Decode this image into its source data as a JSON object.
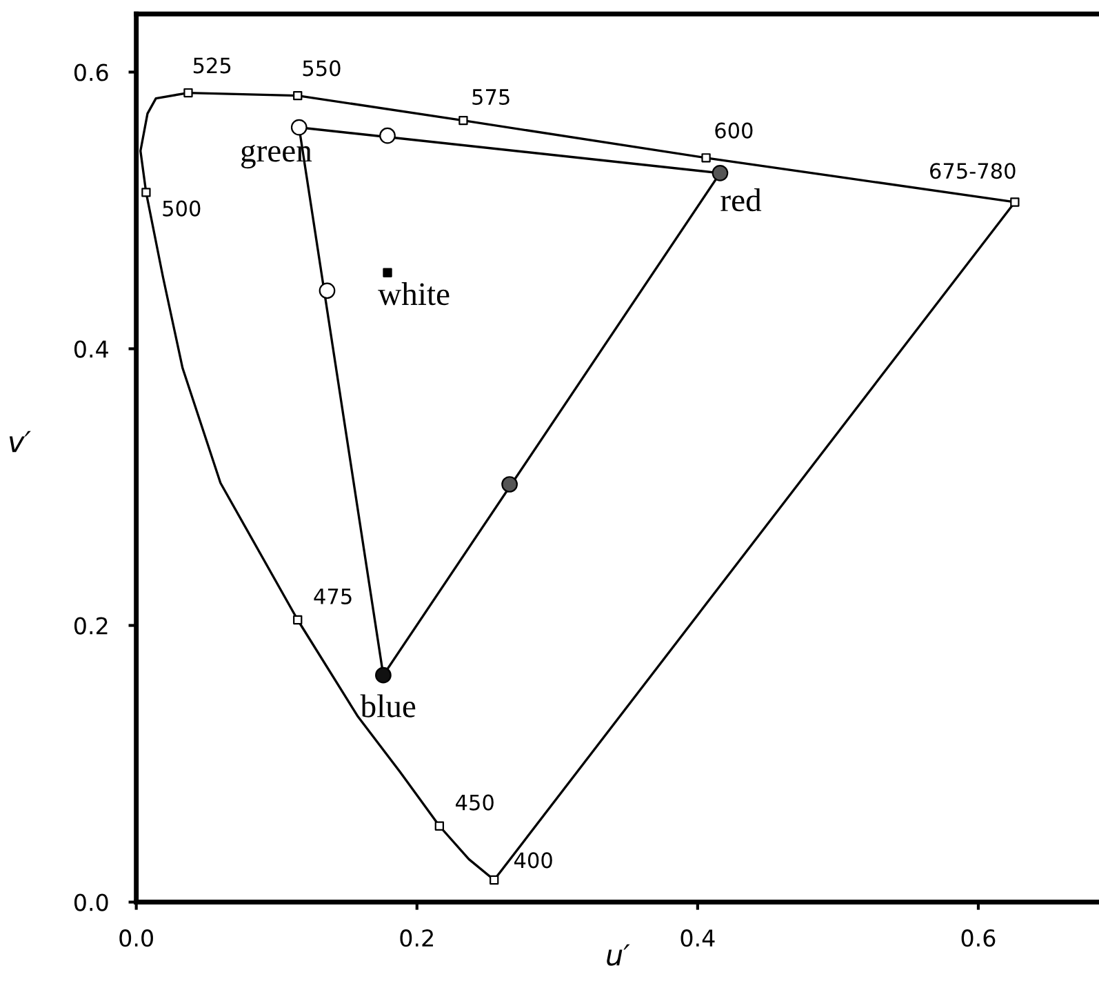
{
  "chart_data": {
    "type": "line",
    "xlabel": "u′",
    "ylabel": "v′",
    "xlim": [
      0,
      0.686
    ],
    "ylim": [
      0,
      0.642
    ],
    "xticks": [
      {
        "value": 0,
        "label": "0.0"
      },
      {
        "value": 0.2,
        "label": "0.2"
      },
      {
        "value": 0.4,
        "label": "0.4"
      },
      {
        "value": 0.6,
        "label": "0.6"
      }
    ],
    "yticks": [
      {
        "value": 0,
        "label": "0.0"
      },
      {
        "value": 0.2,
        "label": "0.2"
      },
      {
        "value": 0.4,
        "label": "0.4"
      },
      {
        "value": 0.6,
        "label": "0.6"
      }
    ],
    "grid": false,
    "legend": false,
    "series": [
      {
        "color": "#000000",
        "x": [
          0.255,
          0.237,
          0.216,
          0.188,
          0.158,
          0.115,
          0.06,
          0.033,
          0.019,
          0.007,
          0.003,
          0.008,
          0.014,
          0.037,
          0.115,
          0.233,
          0.406,
          0.626
        ],
        "values": [
          0.016,
          0.031,
          0.055,
          0.094,
          0.134,
          0.204,
          0.303,
          0.386,
          0.452,
          0.513,
          0.543,
          0.57,
          0.581,
          0.585,
          0.583,
          0.565,
          0.538,
          0.506
        ]
      },
      {
        "color": "#000000",
        "x": [
          0.255,
          0.626
        ],
        "values": [
          0.016,
          0.506
        ]
      },
      {
        "color": "#000000",
        "x": [
          0.116,
          0.416
        ],
        "values": [
          0.56,
          0.527
        ]
      },
      {
        "color": "#000000",
        "x": [
          0.176,
          0.416
        ],
        "values": [
          0.164,
          0.527
        ]
      },
      {
        "color": "#000000",
        "x": [
          0.116,
          0.176
        ],
        "values": [
          0.56,
          0.164
        ]
      },
      {
        "type": "scatter",
        "marker": "square",
        "colors": [
          "#ffffff",
          "#ffffff",
          "#ffffff",
          "#ffffff",
          "#ffffff",
          "#ffffff",
          "#ffffff",
          "#ffffff",
          "#ffffff"
        ],
        "x": [
          0.037,
          0.115,
          0.233,
          0.406,
          0.626,
          0.007,
          0.115,
          0.216,
          0.255
        ],
        "values": [
          0.585,
          0.583,
          0.565,
          0.538,
          0.506,
          0.513,
          0.204,
          0.055,
          0.016
        ]
      },
      {
        "type": "scatter",
        "marker": "circle",
        "colors": [
          "#ffffff",
          "#555555",
          "#111111",
          "#ffffff",
          "#ffffff",
          "#555555"
        ],
        "x": [
          0.116,
          0.416,
          0.176,
          0.179,
          0.136,
          0.266
        ],
        "values": [
          0.56,
          0.527,
          0.164,
          0.554,
          0.442,
          0.302
        ]
      },
      {
        "type": "scatter",
        "marker": "square",
        "colors": [
          "#000000"
        ],
        "x": [
          0.179
        ],
        "values": [
          0.455
        ]
      }
    ],
    "annotations": [
      {
        "text": "525",
        "x": 0.037,
        "y": 0.585
      },
      {
        "text": "550",
        "x": 0.115,
        "y": 0.583
      },
      {
        "text": "575",
        "x": 0.233,
        "y": 0.565
      },
      {
        "text": "600",
        "x": 0.406,
        "y": 0.538
      },
      {
        "text": "675-780",
        "x": 0.626,
        "y": 0.506
      },
      {
        "text": "500",
        "x": 0.007,
        "y": 0.513
      },
      {
        "text": "475",
        "x": 0.115,
        "y": 0.204
      },
      {
        "text": "450",
        "x": 0.216,
        "y": 0.055
      },
      {
        "text": "400",
        "x": 0.255,
        "y": 0.016
      },
      {
        "text": "green",
        "x": 0.116,
        "y": 0.56
      },
      {
        "text": "red",
        "x": 0.416,
        "y": 0.527
      },
      {
        "text": "blue",
        "x": 0.176,
        "y": 0.164
      },
      {
        "text": "white",
        "x": 0.179,
        "y": 0.455
      }
    ]
  }
}
